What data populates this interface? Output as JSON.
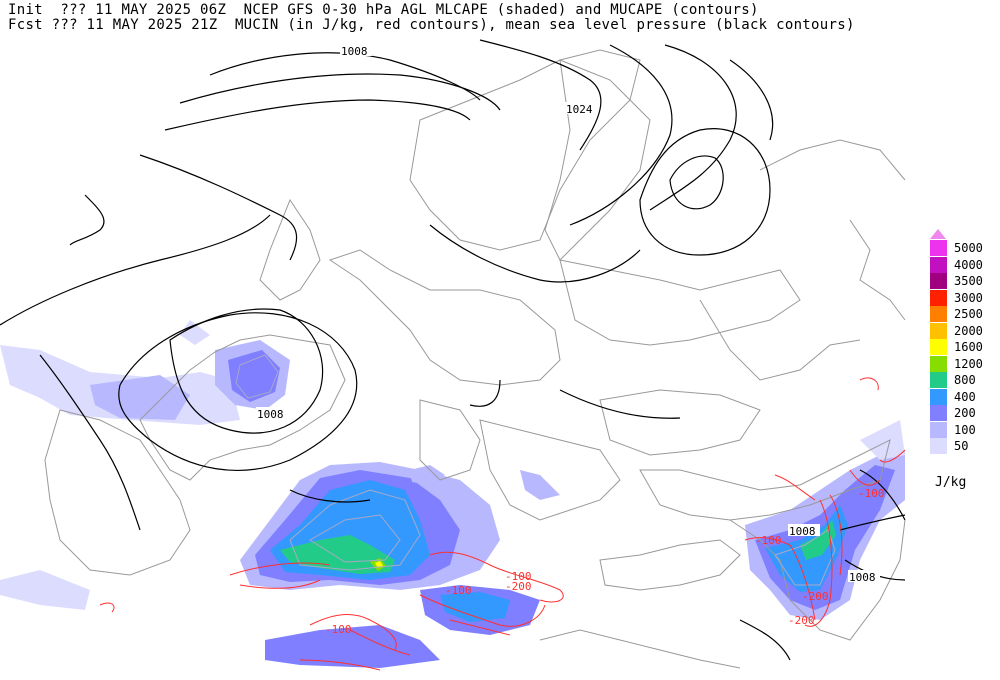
{
  "header": {
    "line1": "Init  ??? 11 MAY 2025 06Z  NCEP GFS 0-30 hPa AGL MLCAPE (shaded) and MUCAPE (contours)",
    "line2": "Fcst ??? 11 MAY 2025 21Z  MUCIN (in J/kg, red contours), mean sea level pressure (black contours)"
  },
  "legend": {
    "units": "J/kg",
    "levels": [
      {
        "label": "5000",
        "color": "#ee33ee"
      },
      {
        "label": "4000",
        "color": "#c010c0"
      },
      {
        "label": "3500",
        "color": "#a00080"
      },
      {
        "label": "3000",
        "color": "#ff2000"
      },
      {
        "label": "2500",
        "color": "#ff8000"
      },
      {
        "label": "2000",
        "color": "#ffc000"
      },
      {
        "label": "1600",
        "color": "#ffff00"
      },
      {
        "label": "1200",
        "color": "#88dd00"
      },
      {
        "label": "800",
        "color": "#22cc88"
      },
      {
        "label": "400",
        "color": "#3399ff"
      },
      {
        "label": "200",
        "color": "#7f7fff"
      },
      {
        "label": "100",
        "color": "#b8b8ff"
      },
      {
        "label": "50",
        "color": "#dcdcff"
      }
    ],
    "top_color": "#ee88ee"
  },
  "isobar_labels": [
    {
      "text": "1008"
    },
    {
      "text": "1024"
    },
    {
      "text": "1008"
    },
    {
      "text": "1008"
    },
    {
      "text": "1008"
    }
  ],
  "cin_labels": [
    {
      "text": "-100"
    },
    {
      "text": "-200"
    },
    {
      "text": "-200"
    },
    {
      "text": "-100"
    },
    {
      "text": "-100"
    },
    {
      "text": "-200"
    },
    {
      "text": "-100"
    },
    {
      "text": "-100"
    }
  ],
  "colors": {
    "isobar": "#000000",
    "borders": "#999999",
    "cin": "#ff3030",
    "mucape": "#a8a8c8"
  }
}
